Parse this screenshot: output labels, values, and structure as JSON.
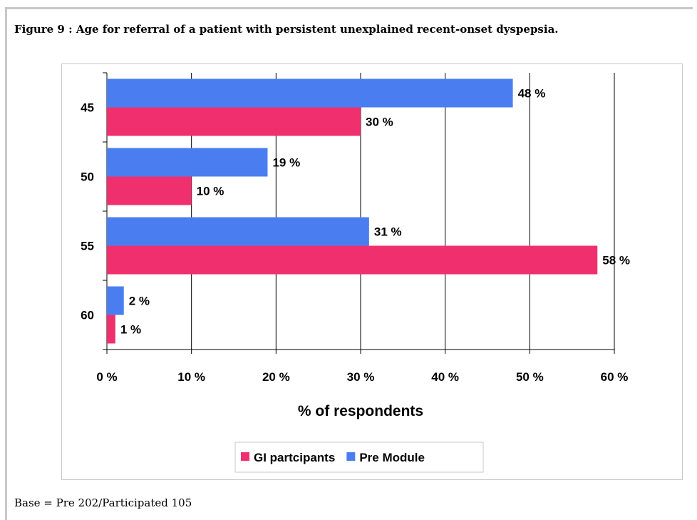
{
  "title": "Figure 9 : Age for referral of a patient with persistent unexplained recent-onset dyspepsia.",
  "footnote": "Base = Pre 202/Participated 105",
  "chart_data": {
    "type": "bar",
    "orientation": "horizontal",
    "categories": [
      "45",
      "50",
      "55",
      "60"
    ],
    "series": [
      {
        "name": "Pre Module",
        "color": "#4a7ef0",
        "values": [
          48,
          19,
          31,
          2
        ],
        "labels": [
          "48 %",
          "19 %",
          "31 %",
          "2 %"
        ]
      },
      {
        "name": "GI partcipants",
        "color": "#f0306e",
        "values": [
          30,
          10,
          58,
          1
        ],
        "labels": [
          "30 %",
          "10 %",
          "58 %",
          "1 %"
        ]
      }
    ],
    "xlim": [
      0,
      60
    ],
    "xticks": [
      "0 %",
      "10 %",
      "20 %",
      "30 %",
      "40 %",
      "50 %",
      "60 %"
    ],
    "xlabel": "% of respondents",
    "ylabel": "",
    "grid": true,
    "legend": {
      "placement": "bottom",
      "order": [
        "GI partcipants",
        "Pre Module"
      ]
    }
  }
}
